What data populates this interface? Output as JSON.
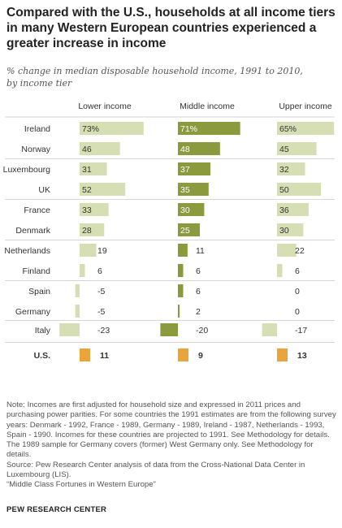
{
  "title": "Compared with the U.S., households at all income tiers in many Western European countries experienced a greater increase in income",
  "subtitle_line1": "% change in median disposable household income, 1991 to 2010,",
  "subtitle_line2": "by income tier",
  "chart_data": {
    "type": "bar",
    "orientation": "horizontal",
    "categories": [
      "Ireland",
      "Norway",
      "Luxembourg",
      "UK",
      "France",
      "Denmark",
      "Netherlands",
      "Finland",
      "Spain",
      "Germany",
      "Italy",
      "U.S."
    ],
    "series": [
      {
        "name": "Lower income",
        "values": [
          73,
          46,
          31,
          52,
          33,
          28,
          19,
          6,
          -5,
          -5,
          -23,
          11
        ]
      },
      {
        "name": "Middle income",
        "values": [
          71,
          48,
          37,
          35,
          30,
          25,
          11,
          6,
          6,
          2,
          -20,
          9
        ]
      },
      {
        "name": "Upper income",
        "values": [
          65,
          45,
          32,
          50,
          36,
          30,
          22,
          6,
          0,
          0,
          -17,
          13
        ]
      }
    ],
    "value_labels": [
      [
        "73%",
        "46",
        "31",
        "52",
        "33",
        "28",
        "19",
        "6",
        "-5",
        "-5",
        "-23",
        "11"
      ],
      [
        "71%",
        "48",
        "37",
        "35",
        "30",
        "25",
        "11",
        "6",
        "6",
        "2",
        "-20",
        "9"
      ],
      [
        "65%",
        "45",
        "32",
        "50",
        "36",
        "30",
        "22",
        "6",
        "0",
        "0",
        "-17",
        "13"
      ]
    ],
    "groups": [
      [
        0,
        1
      ],
      [
        2,
        3
      ],
      [
        4,
        5
      ],
      [
        6,
        7
      ],
      [
        8,
        9
      ],
      [
        10
      ],
      [
        11
      ]
    ],
    "highlight_category": "U.S.",
    "colors": {
      "lower": "#d6dfb3",
      "middle": "#8a9a3c",
      "upper": "#d6dfb3",
      "us": "#eaa53a",
      "separator": "#c8c8c8"
    }
  },
  "notes": {
    "line1": "Note: Incomes are first adjusted for household size and expressed in 2011 prices and purchasing power parities. For some countries the 1991 estimates are from the following survey years: Denmark - 1992, France - 1989, Germany - 1989, Ireland - 1987, Netherlands - 1993, Spain - 1990. Incomes for these countries are projected to 1991. See Methodology for details.  The 1989 sample for Germany covers (former) West Germany only. See Methodology for details.",
    "line2": "Source: Pew Research Center analysis of data from the Cross-National Data Center in Luxembourg (LIS).",
    "line3": "“Middle Class Fortunes in Western Europe”"
  },
  "footer": "PEW RESEARCH CENTER"
}
